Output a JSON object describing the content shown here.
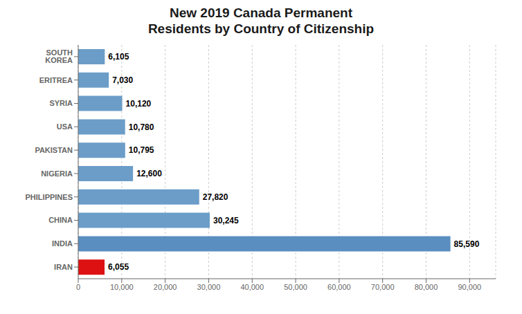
{
  "chart_data": {
    "type": "bar",
    "orientation": "horizontal",
    "title": "New 2019 Canada Permanent\nResidents by Country of Citizenship",
    "categories": [
      "SOUTH KOREA",
      "ERITREA",
      "SYRIA",
      "USA",
      "PAKISTAN",
      "NIGERIA",
      "PHILIPPINES",
      "CHINA",
      "INDIA",
      "IRAN"
    ],
    "values": [
      6105,
      7030,
      10120,
      10780,
      10795,
      12600,
      27820,
      30245,
      85590,
      6055
    ],
    "value_labels": [
      "6,105",
      "7,030",
      "10,120",
      "10,780",
      "10,795",
      "12,600",
      "27,820",
      "30,245",
      "85,590",
      "6,055"
    ],
    "colors": [
      "#6b9dc8",
      "#6b9dc8",
      "#6b9dc8",
      "#6b9dc8",
      "#6b9dc8",
      "#6b9dc8",
      "#6b9dc8",
      "#6b9dc8",
      "#5b8ec0",
      "#dd1111"
    ],
    "xlim": [
      0,
      96000
    ],
    "xticks": [
      0,
      {
        "value": 10000,
        "label": "10,000"
      },
      {
        "value": 20000,
        "label": "20,000"
      },
      {
        "value": 30000,
        "label": "30,000"
      },
      {
        "value": 40000,
        "label": "40,000"
      },
      {
        "value": 50000,
        "label": "50,000"
      },
      {
        "value": 60000,
        "label": "60,000"
      },
      {
        "value": 70000,
        "label": "70,000"
      },
      {
        "value": 80000,
        "label": "80,000"
      },
      {
        "value": 90000,
        "label": "90,000"
      }
    ],
    "grid": true,
    "data_labels": true
  }
}
